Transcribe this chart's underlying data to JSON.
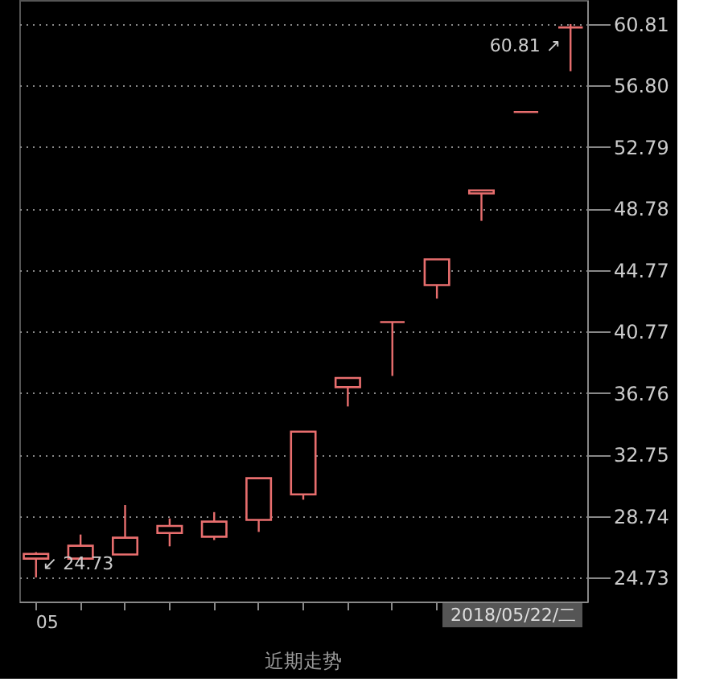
{
  "chart_data": {
    "type": "candlestick",
    "categories": [
      "05",
      null,
      null,
      null,
      null,
      null,
      null,
      null,
      null,
      null,
      null,
      null,
      null
    ],
    "ohlc": [
      [
        25.96,
        26.38,
        24.73,
        26.27
      ],
      [
        25.96,
        27.53,
        25.96,
        26.8
      ],
      [
        26.23,
        29.45,
        26.23,
        27.32
      ],
      [
        27.63,
        28.58,
        26.76,
        28.09
      ],
      [
        27.39,
        28.99,
        27.17,
        28.37
      ],
      [
        28.48,
        31.2,
        27.7,
        31.2
      ],
      [
        30.15,
        34.24,
        29.8,
        34.24
      ],
      [
        37.14,
        37.74,
        35.88,
        37.74
      ],
      [
        41.38,
        41.38,
        37.87,
        41.38
      ],
      [
        43.79,
        45.47,
        42.91,
        45.47
      ],
      [
        49.77,
        49.97,
        47.98,
        49.97
      ],
      [
        55.08,
        55.08,
        55.08,
        55.08
      ],
      [
        60.59,
        60.81,
        57.74,
        60.59
      ]
    ],
    "colors": [
      "#e86e6e",
      "#e86e6e",
      "#e86e6e",
      "#e86e6e",
      "#e86e6e",
      "#e86e6e",
      "#e86e6e",
      "#e86e6e",
      "#e86e6e",
      "#e86e6e",
      "#e86e6e",
      "#e86e6e",
      "#e86e6e"
    ],
    "ylim": [
      23.16,
      62.38
    ],
    "yticks": [
      24.73,
      28.74,
      32.75,
      36.76,
      40.77,
      44.77,
      48.78,
      52.79,
      {
        "value": 56.8,
        "label": "56.80"
      },
      60.81
    ],
    "grid": "y",
    "annotations": [
      "60.81 ↗",
      "↙ 24.73",
      "2018/05/22/二",
      "近期走势"
    ]
  }
}
